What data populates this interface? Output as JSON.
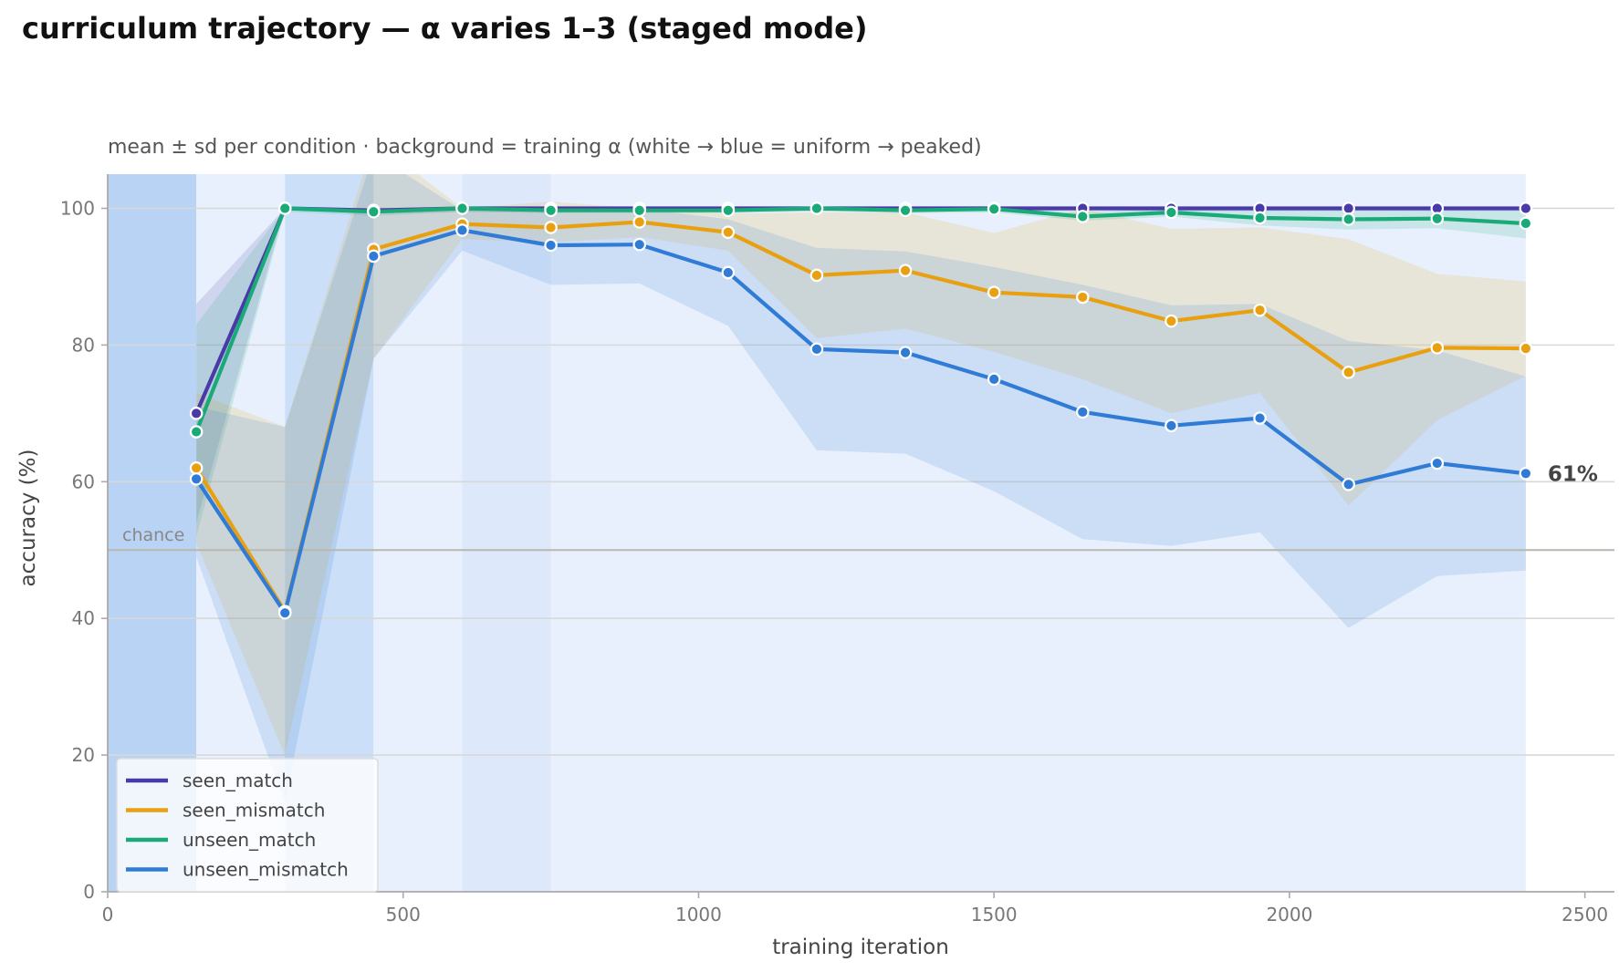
{
  "chart_data": {
    "type": "line",
    "title": "curriculum trajectory — α varies 1–3 (staged mode)",
    "subtitle": "mean ± sd per condition · background = training α (white → blue = uniform → peaked)",
    "xlabel": "training iteration",
    "ylabel": "accuracy (%)",
    "xlim": [
      0,
      2550
    ],
    "ylim": [
      0,
      105
    ],
    "xticks": [
      0,
      500,
      1000,
      1500,
      2000,
      2500
    ],
    "yticks": [
      0,
      20,
      40,
      60,
      80,
      100
    ],
    "grid": "horizontal",
    "legend_position": "lower-left",
    "x": [
      150,
      300,
      450,
      600,
      750,
      900,
      1050,
      1200,
      1350,
      1500,
      1650,
      1800,
      1950,
      2100,
      2250,
      2400
    ],
    "series": [
      {
        "name": "seen_match",
        "color": "#4a3aa8",
        "values": [
          70,
          100,
          99.7,
          100,
          100,
          100,
          100,
          100,
          100,
          100,
          100,
          100,
          100,
          100,
          100,
          100
        ],
        "band_low": [
          54,
          100,
          99.2,
          99.5,
          99.5,
          99.5,
          99.5,
          99.6,
          99.6,
          99.6,
          99.6,
          99.6,
          99.6,
          99.6,
          99.6,
          99.6
        ],
        "band_high": [
          86,
          100,
          100,
          100,
          100,
          100,
          100,
          100,
          100,
          100,
          100,
          100,
          100,
          100,
          100,
          100
        ]
      },
      {
        "name": "seen_mismatch",
        "color": "#e8a010",
        "values": [
          62,
          41,
          94,
          97.7,
          97.2,
          98,
          96.5,
          90.2,
          90.9,
          87.7,
          87,
          83.5,
          85.1,
          76,
          79.6,
          79.5
        ],
        "band_low": [
          51,
          20,
          78,
          95.5,
          95,
          95.8,
          93.8,
          81,
          82.4,
          79,
          75,
          70,
          73,
          56.5,
          69,
          75.5
        ],
        "band_high": [
          73,
          68,
          110,
          100,
          101,
          100,
          99.2,
          99.4,
          99.4,
          96.4,
          100,
          97,
          97.2,
          95.5,
          90.4,
          89.3
        ]
      },
      {
        "name": "unseen_match",
        "color": "#1aaa78",
        "values": [
          67.3,
          100,
          99.5,
          100,
          99.7,
          99.7,
          99.7,
          100,
          99.7,
          99.9,
          98.8,
          99.4,
          98.6,
          98.4,
          98.5,
          97.8
        ],
        "band_low": [
          52,
          99.5,
          98.9,
          99.5,
          99.3,
          99.3,
          99.3,
          99.6,
          99.3,
          99.4,
          98.2,
          98.8,
          97.5,
          96.9,
          97.1,
          95.6
        ],
        "band_high": [
          83,
          100,
          100,
          100,
          100,
          100,
          100,
          100,
          100,
          100,
          99.4,
          100,
          99.7,
          99.9,
          99.9,
          100
        ]
      },
      {
        "name": "unseen_mismatch",
        "color": "#2f7bd6",
        "values": [
          60.4,
          40.8,
          93,
          96.8,
          94.6,
          94.7,
          90.6,
          79.4,
          78.9,
          75,
          70.2,
          68.2,
          69.3,
          59.6,
          62.7,
          61.2
        ],
        "band_low": [
          49,
          13,
          78,
          93.8,
          88.8,
          89,
          82.8,
          64.6,
          64.1,
          58.6,
          51.6,
          50.6,
          52.6,
          38.6,
          46.2,
          47
        ],
        "band_high": [
          71,
          68,
          108,
          99.7,
          100,
          100,
          98.4,
          94.2,
          93.7,
          91.4,
          88.8,
          85.8,
          86,
          80.6,
          79.2,
          75.4
        ]
      }
    ],
    "background_alpha_stages": [
      {
        "x0": 0,
        "x1": 150,
        "color": "#b8d3f3"
      },
      {
        "x0": 150,
        "x1": 300,
        "color": "#e7f0fc"
      },
      {
        "x0": 300,
        "x1": 450,
        "color": "#cbe0f8"
      },
      {
        "x0": 450,
        "x1": 600,
        "color": "#e7f0fc"
      },
      {
        "x0": 600,
        "x1": 750,
        "color": "#dde9fa"
      },
      {
        "x0": 750,
        "x1": 2400,
        "color": "#e7f0fc"
      }
    ],
    "reference_line": {
      "y": 50,
      "label": "chance"
    },
    "end_annotation": {
      "series": "unseen_mismatch",
      "text": "61%"
    }
  }
}
